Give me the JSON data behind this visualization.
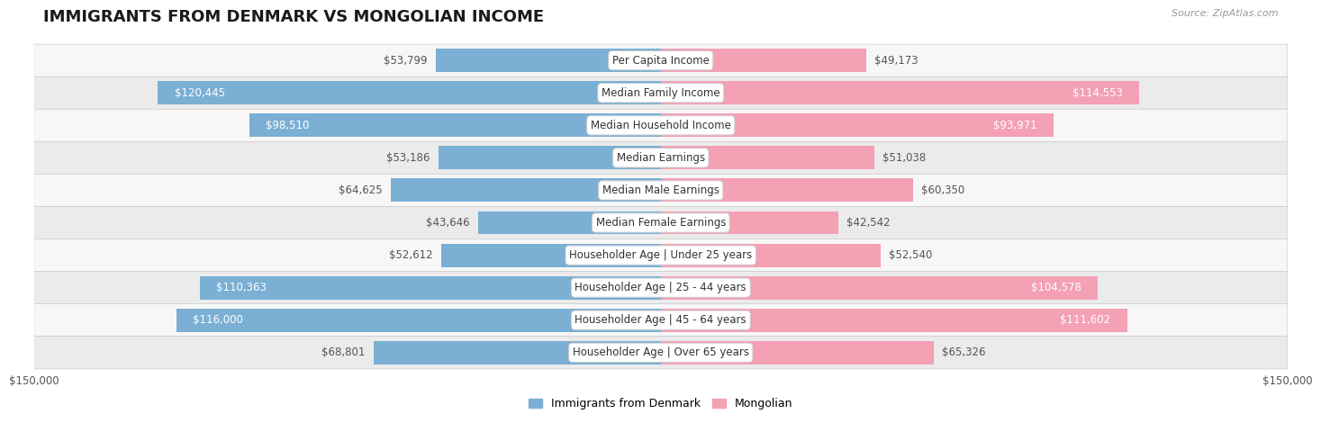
{
  "title": "IMMIGRANTS FROM DENMARK VS MONGOLIAN INCOME",
  "source": "Source: ZipAtlas.com",
  "categories": [
    "Per Capita Income",
    "Median Family Income",
    "Median Household Income",
    "Median Earnings",
    "Median Male Earnings",
    "Median Female Earnings",
    "Householder Age | Under 25 years",
    "Householder Age | 25 - 44 years",
    "Householder Age | 45 - 64 years",
    "Householder Age | Over 65 years"
  ],
  "denmark_values": [
    53799,
    120445,
    98510,
    53186,
    64625,
    43646,
    52612,
    110363,
    116000,
    68801
  ],
  "mongolian_values": [
    49173,
    114553,
    93971,
    51038,
    60350,
    42542,
    52540,
    104578,
    111602,
    65326
  ],
  "denmark_labels": [
    "$53,799",
    "$120,445",
    "$98,510",
    "$53,186",
    "$64,625",
    "$43,646",
    "$52,612",
    "$110,363",
    "$116,000",
    "$68,801"
  ],
  "mongolian_labels": [
    "$49,173",
    "$114,553",
    "$93,971",
    "$51,038",
    "$60,350",
    "$42,542",
    "$52,540",
    "$104,578",
    "$111,602",
    "$65,326"
  ],
  "denmark_color": "#7bafd4",
  "mongolian_color": "#f4a0b5",
  "row_bg_light": "#f7f7f7",
  "row_bg_dark": "#ebebeb",
  "max_value": 150000,
  "x_axis_label_left": "$150,000",
  "x_axis_label_right": "$150,000",
  "legend_denmark": "Immigrants from Denmark",
  "legend_mongolian": "Mongolian",
  "title_fontsize": 13,
  "label_fontsize": 8.5,
  "category_fontsize": 8.5,
  "axis_fontsize": 8.5,
  "inside_threshold": 55000,
  "denmark_inside_label_colors": [
    false,
    true,
    true,
    false,
    false,
    false,
    false,
    true,
    true,
    false
  ],
  "mongolian_inside_label_colors": [
    false,
    true,
    true,
    false,
    false,
    false,
    false,
    true,
    true,
    false
  ]
}
